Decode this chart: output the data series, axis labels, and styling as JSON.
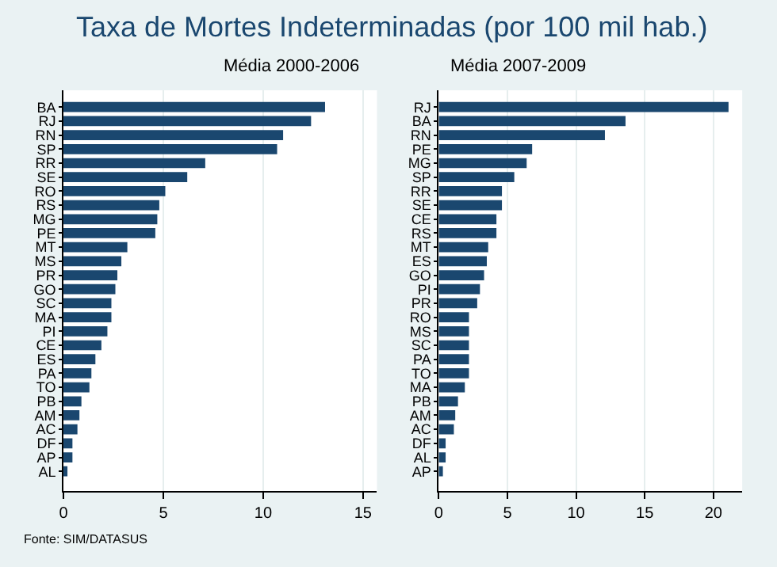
{
  "chart_data": [
    {
      "type": "bar",
      "orientation": "horizontal",
      "title": "Taxa de Mortes Indeterminadas (por 100 mil hab.)",
      "subtitle": "Média 2000-2006",
      "categories": [
        "BA",
        "RJ",
        "RN",
        "SP",
        "RR",
        "SE",
        "RO",
        "RS",
        "MG",
        "PE",
        "MT",
        "MS",
        "PR",
        "GO",
        "SC",
        "MA",
        "PI",
        "CE",
        "ES",
        "PA",
        "TO",
        "PB",
        "AM",
        "AC",
        "DF",
        "AP",
        "AL"
      ],
      "values": [
        13.1,
        12.4,
        11.0,
        10.7,
        7.1,
        6.2,
        5.1,
        4.8,
        4.7,
        4.6,
        3.2,
        2.9,
        2.7,
        2.6,
        2.4,
        2.4,
        2.2,
        1.9,
        1.6,
        1.4,
        1.3,
        0.9,
        0.8,
        0.7,
        0.45,
        0.45,
        0.2
      ],
      "color": "#1a476f",
      "xlim": [
        0,
        15.7
      ],
      "xticks": [
        0,
        5,
        10,
        15
      ],
      "grid": "x",
      "annotations": [
        "Fonte: SIM/DATASUS"
      ]
    },
    {
      "type": "bar",
      "orientation": "horizontal",
      "subtitle": "Média 2007-2009",
      "categories": [
        "RJ",
        "BA",
        "RN",
        "PE",
        "MG",
        "SP",
        "RR",
        "SE",
        "CE",
        "RS",
        "MT",
        "ES",
        "GO",
        "PI",
        "PR",
        "RO",
        "MS",
        "SC",
        "PA",
        "TO",
        "MA",
        "PB",
        "AM",
        "AC",
        "DF",
        "AL",
        "AP"
      ],
      "values": [
        21.1,
        13.6,
        12.1,
        6.8,
        6.4,
        5.5,
        4.6,
        4.6,
        4.2,
        4.2,
        3.6,
        3.5,
        3.3,
        3.0,
        2.8,
        2.2,
        2.2,
        2.2,
        2.2,
        2.2,
        1.9,
        1.4,
        1.2,
        1.1,
        0.5,
        0.5,
        0.3
      ],
      "color": "#1a476f",
      "xlim": [
        0,
        22.1
      ],
      "xticks": [
        0,
        5,
        10,
        15,
        20
      ],
      "grid": "x"
    }
  ]
}
